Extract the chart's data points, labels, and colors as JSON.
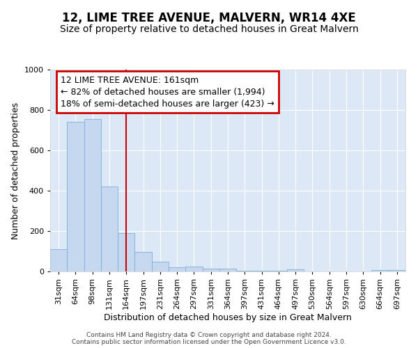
{
  "title1": "12, LIME TREE AVENUE, MALVERN, WR14 4XE",
  "title2": "Size of property relative to detached houses in Great Malvern",
  "xlabel": "Distribution of detached houses by size in Great Malvern",
  "ylabel": "Number of detached properties",
  "categories": [
    "31sqm",
    "64sqm",
    "98sqm",
    "131sqm",
    "164sqm",
    "197sqm",
    "231sqm",
    "264sqm",
    "297sqm",
    "331sqm",
    "364sqm",
    "397sqm",
    "431sqm",
    "464sqm",
    "497sqm",
    "530sqm",
    "564sqm",
    "597sqm",
    "630sqm",
    "664sqm",
    "697sqm"
  ],
  "values": [
    110,
    740,
    755,
    420,
    190,
    97,
    47,
    22,
    23,
    15,
    15,
    5,
    5,
    5,
    10,
    0,
    0,
    0,
    0,
    8,
    8
  ],
  "bar_color": "#c5d8f0",
  "bar_edge_color": "#7aaed6",
  "vline_index": 4,
  "vline_color": "#cc0000",
  "annotation_line1": "12 LIME TREE AVENUE: 161sqm",
  "annotation_line2": "← 82% of detached houses are smaller (1,994)",
  "annotation_line3": "18% of semi-detached houses are larger (423) →",
  "annotation_box_color": "#cc0000",
  "background_color": "#dce8f5",
  "footer_line1": "Contains HM Land Registry data © Crown copyright and database right 2024.",
  "footer_line2": "Contains public sector information licensed under the Open Government Licence v3.0.",
  "ylim": [
    0,
    1000
  ],
  "title1_fontsize": 12,
  "title2_fontsize": 10,
  "xlabel_fontsize": 9,
  "ylabel_fontsize": 9,
  "tick_fontsize": 8,
  "annotation_fontsize": 9
}
